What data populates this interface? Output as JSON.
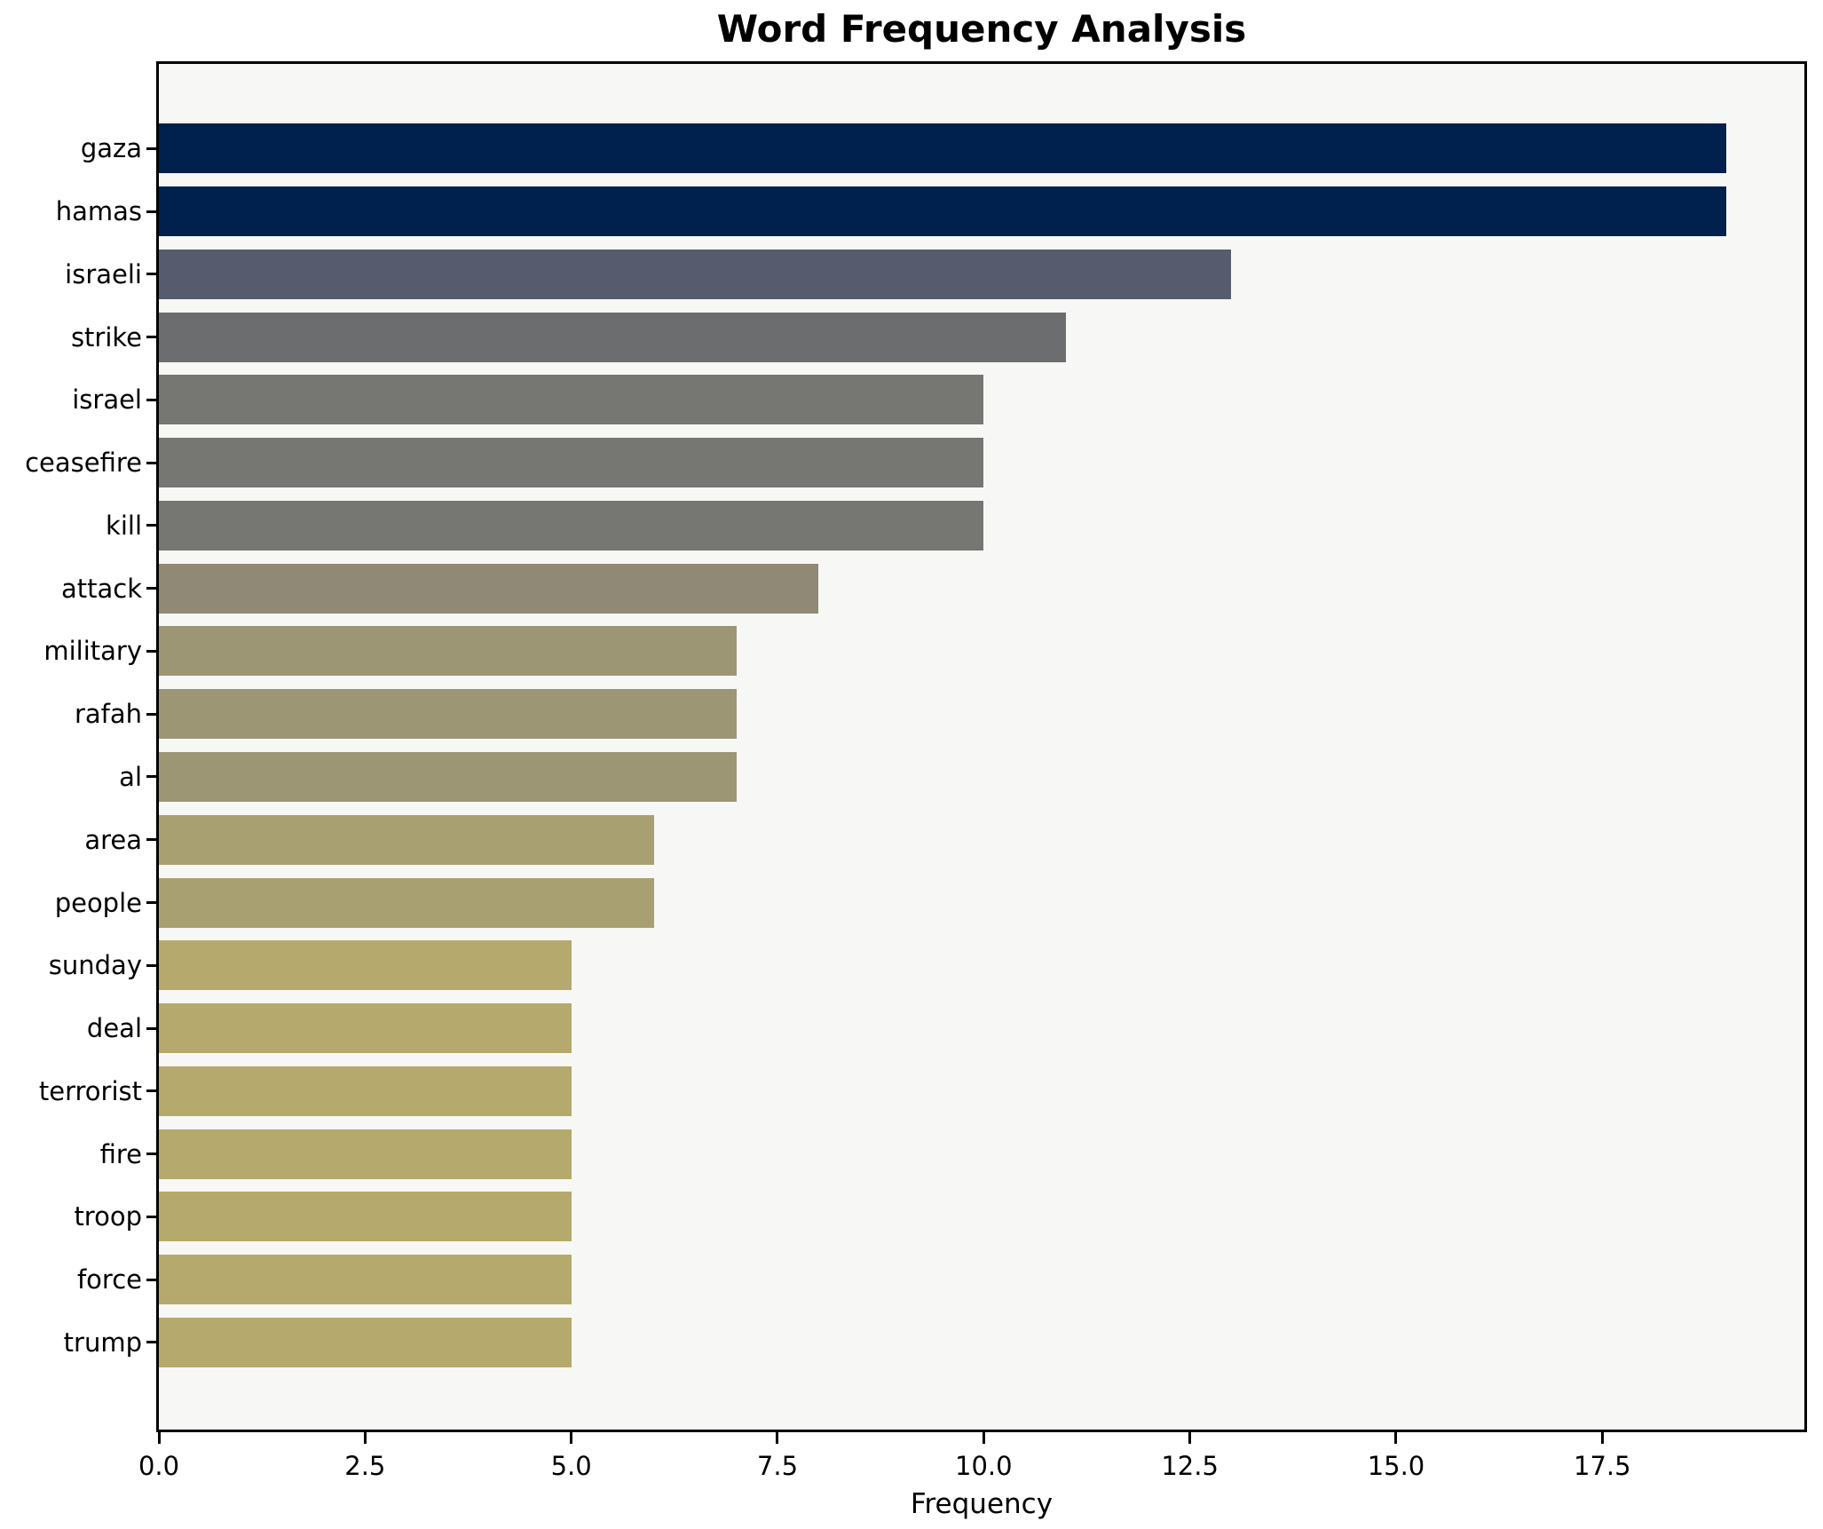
{
  "chart_data": {
    "type": "bar",
    "orientation": "horizontal",
    "title": "Word Frequency Analysis",
    "xlabel": "Frequency",
    "ylabel": "",
    "categories": [
      "gaza",
      "hamas",
      "israeli",
      "strike",
      "israel",
      "ceasefire",
      "kill",
      "attack",
      "military",
      "rafah",
      "al",
      "area",
      "people",
      "sunday",
      "deal",
      "terrorist",
      "fire",
      "troop",
      "force",
      "trump"
    ],
    "values": [
      19,
      19,
      13,
      11,
      10,
      10,
      10,
      8,
      7,
      7,
      7,
      6,
      6,
      5,
      5,
      5,
      5,
      5,
      5,
      5
    ],
    "bar_colors": [
      "#00204D",
      "#00204D",
      "#565C6E",
      "#6C6D6E",
      "#767672",
      "#767672",
      "#767672",
      "#8F8975",
      "#9C9674",
      "#9C9674",
      "#9C9674",
      "#A9A072",
      "#A9A072",
      "#B5A96D",
      "#B5A96D",
      "#B5A96D",
      "#B5A96D",
      "#B5A96D",
      "#B5A96D",
      "#B5A96D"
    ],
    "x_ticks": [
      0.0,
      2.5,
      5.0,
      7.5,
      10.0,
      12.5,
      15.0,
      17.5
    ],
    "x_tick_labels": [
      "0.0",
      "2.5",
      "5.0",
      "7.5",
      "10.0",
      "12.5",
      "15.0",
      "17.5"
    ],
    "xlim": [
      0,
      19.95
    ],
    "grid": false,
    "legend": null,
    "plot_background": "#F7F7F6",
    "frame_color": "#000000",
    "text_color": "#000000"
  }
}
